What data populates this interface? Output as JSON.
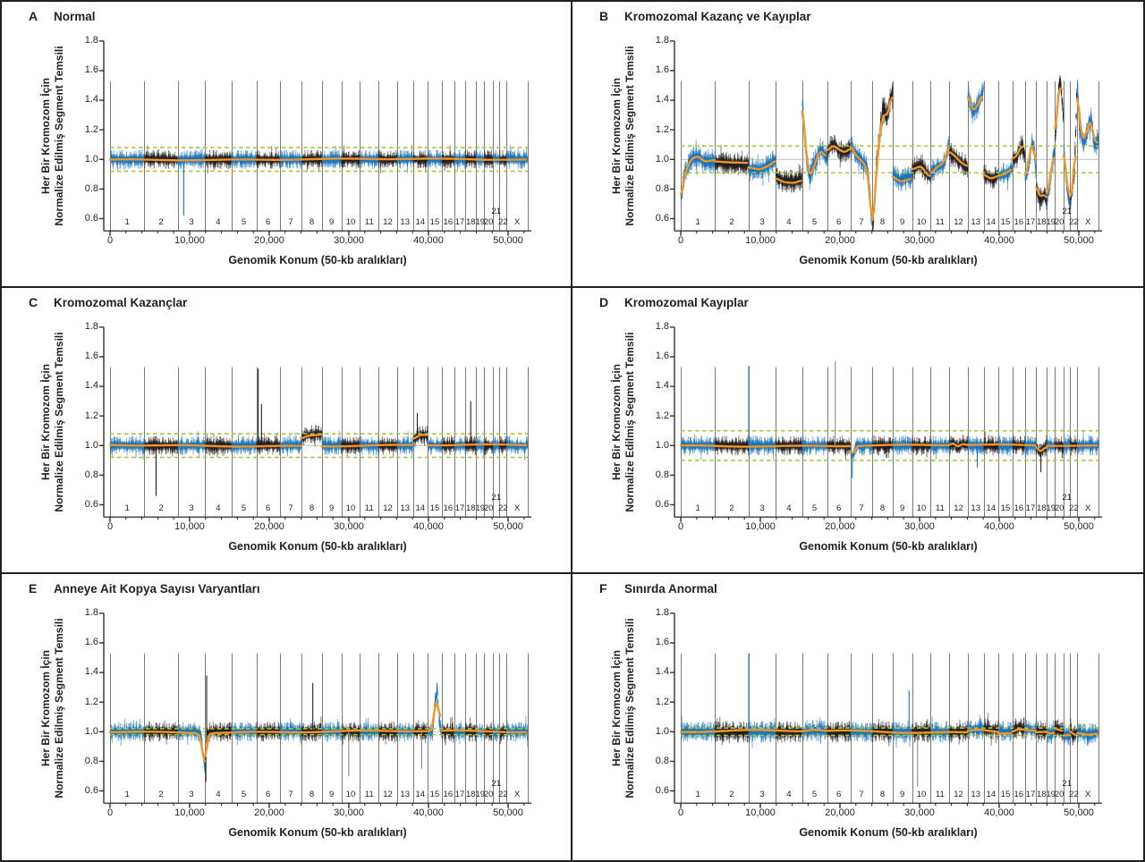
{
  "figure": {
    "background": "#ffffff",
    "border_color": "#231f20"
  },
  "chart_data": {
    "type": "scatter",
    "description": "Six-panel cell-free DNA genome-wide copy-number profiles. Each panel plots noisy per-bin normalized segment representation (alternating blue/black per chromosome) versus genomic position in 50-kb bins, with an orange smoothed segment line, a gray baseline at 1.0 and dashed yellow-green threshold lines.",
    "colors": {
      "odd_chromosome": "#1c75bb",
      "even_chromosome": "#231f20",
      "segment_line": "#f0962b",
      "threshold_dashed": "#a8c540",
      "baseline": "#c6c6c6",
      "separator": "#7a7a7a",
      "spike_gray": "#8a8a8a",
      "axis": "#231f20"
    },
    "axes": {
      "y_label_line1": "Her Bir Kromozom İçin",
      "y_label_line2": "Normalize Edilmiş Segment Temsili",
      "x_label": "Genomik Konum (50-kb aralıkları)",
      "y_ticks": [
        1.8,
        1.6,
        1.4,
        1.2,
        1.0,
        0.8,
        0.6
      ],
      "y_tick_labels": [
        "1.8",
        "1.6",
        "1.4",
        "1.2",
        "1.0",
        "0.8",
        "0.6"
      ],
      "x_ticks": [
        0,
        10000,
        20000,
        30000,
        40000,
        50000
      ],
      "x_tick_labels": [
        "0",
        "10,000",
        "20,000",
        "30,000",
        "40,000",
        "50,000"
      ],
      "x_minor_step": 2000,
      "y_range": [
        0.6,
        1.8
      ],
      "x_range": [
        0,
        52487
      ],
      "baseline": 1.0,
      "separator_top_value": 1.53
    },
    "chromosomes": [
      {
        "name": "1",
        "bins": 4308
      },
      {
        "name": "2",
        "bins": 4204
      },
      {
        "name": "3",
        "bins": 3425
      },
      {
        "name": "4",
        "bins": 3304
      },
      {
        "name": "5",
        "bins": 3131
      },
      {
        "name": "6",
        "bins": 2958
      },
      {
        "name": "7",
        "bins": 2751
      },
      {
        "name": "8",
        "bins": 2526
      },
      {
        "name": "9",
        "bins": 2439
      },
      {
        "name": "10",
        "bins": 2353
      },
      {
        "name": "11",
        "bins": 2335
      },
      {
        "name": "12",
        "bins": 2318
      },
      {
        "name": "13",
        "bins": 1990
      },
      {
        "name": "14",
        "bins": 1851
      },
      {
        "name": "15",
        "bins": 1782
      },
      {
        "name": "16",
        "bins": 1557
      },
      {
        "name": "17",
        "bins": 1401
      },
      {
        "name": "18",
        "bins": 1349
      },
      {
        "name": "19",
        "bins": 1021
      },
      {
        "name": "20",
        "bins": 1090
      },
      {
        "name": "21",
        "bins": 830
      },
      {
        "name": "22",
        "bins": 882
      },
      {
        "name": "X",
        "bins": 2682
      }
    ],
    "panels": [
      {
        "label": "A",
        "title": "Normal",
        "seed": 11,
        "thresholds": [
          1.08,
          0.92
        ],
        "noise_amp": 0.048,
        "line_wobble": 0.004,
        "segments": {},
        "amp_over": {},
        "band_gaps": [],
        "spikes": [
          {
            "chr": "3",
            "frac": 0.22,
            "value": 0.62,
            "color": "blue"
          }
        ]
      },
      {
        "label": "B",
        "title": "Kromozomal Kazanç ve Kayıplar",
        "seed": 22,
        "thresholds": [
          1.09,
          0.91
        ],
        "noise_amp": 0.058,
        "line_wobble": 0.009,
        "segments": {
          "1": [
            [
              0,
              0.72
            ],
            [
              0.12,
              0.9
            ],
            [
              0.3,
              1.0
            ],
            [
              0.5,
              1.02
            ],
            [
              0.7,
              0.98
            ],
            [
              1,
              0.99
            ]
          ],
          "2": [
            [
              0,
              0.98
            ],
            [
              0.5,
              0.97
            ],
            [
              1,
              0.97
            ]
          ],
          "3": [
            [
              0,
              0.94
            ],
            [
              0.4,
              0.93
            ],
            [
              0.75,
              0.96
            ],
            [
              1,
              1.0
            ]
          ],
          "4": [
            [
              0,
              0.88
            ],
            [
              0.3,
              0.855
            ],
            [
              0.7,
              0.85
            ],
            [
              1,
              0.87
            ]
          ],
          "5": [
            [
              0,
              1.42
            ],
            [
              0.18,
              1.0
            ],
            [
              0.3,
              0.88
            ],
            [
              0.5,
              0.97
            ],
            [
              0.72,
              1.07
            ],
            [
              0.88,
              1.04
            ],
            [
              1,
              1.0
            ]
          ],
          "6": [
            [
              0,
              1.06
            ],
            [
              0.25,
              1.1
            ],
            [
              0.5,
              1.07
            ],
            [
              0.75,
              1.05
            ],
            [
              1,
              1.08
            ]
          ],
          "7": [
            [
              0,
              1.1
            ],
            [
              0.25,
              1.03
            ],
            [
              0.5,
              1.0
            ],
            [
              0.75,
              0.95
            ],
            [
              0.9,
              0.75
            ],
            [
              1,
              0.45
            ]
          ],
          "8": [
            [
              0,
              0.5
            ],
            [
              0.2,
              0.95
            ],
            [
              0.4,
              1.22
            ],
            [
              0.55,
              1.35
            ],
            [
              0.7,
              1.28
            ],
            [
              0.85,
              1.38
            ],
            [
              1,
              1.47
            ]
          ],
          "9": [
            [
              0,
              0.9
            ],
            [
              0.4,
              0.86
            ],
            [
              1,
              0.88
            ]
          ],
          "10": [
            [
              0,
              0.94
            ],
            [
              0.5,
              0.96
            ],
            [
              0.8,
              0.9
            ],
            [
              1,
              0.88
            ]
          ],
          "11": [
            [
              0,
              0.9
            ],
            [
              0.35,
              0.95
            ],
            [
              0.7,
              0.97
            ],
            [
              0.9,
              1.05
            ],
            [
              1,
              1.14
            ]
          ],
          "12": [
            [
              0,
              1.05
            ],
            [
              0.3,
              1.02
            ],
            [
              0.6,
              0.98
            ],
            [
              1,
              0.95
            ]
          ],
          "13": [
            [
              0,
              1.44
            ],
            [
              0.3,
              1.32
            ],
            [
              0.6,
              1.36
            ],
            [
              0.85,
              1.42
            ],
            [
              1,
              1.49
            ]
          ],
          "14": [
            [
              0,
              0.9
            ],
            [
              0.5,
              0.87
            ],
            [
              1,
              0.89
            ]
          ],
          "15": [
            [
              0,
              0.89
            ],
            [
              0.5,
              0.9
            ],
            [
              1,
              0.94
            ]
          ],
          "16": [
            [
              0,
              1.0
            ],
            [
              0.4,
              1.02
            ],
            [
              0.75,
              1.1
            ],
            [
              1,
              1.03
            ]
          ],
          "17": [
            [
              0,
              0.86
            ],
            [
              0.3,
              0.96
            ],
            [
              0.65,
              1.12
            ],
            [
              0.85,
              1.05
            ],
            [
              1,
              0.88
            ]
          ],
          "18": [
            [
              0,
              0.82
            ],
            [
              0.35,
              0.72
            ],
            [
              0.7,
              0.76
            ],
            [
              1,
              0.72
            ]
          ],
          "19": [
            [
              0,
              0.72
            ],
            [
              0.5,
              0.9
            ],
            [
              1,
              1.08
            ]
          ],
          "20": [
            [
              0,
              1.1
            ],
            [
              0.45,
              1.5
            ],
            [
              0.65,
              1.54
            ],
            [
              1,
              1.25
            ]
          ],
          "21": [
            [
              0,
              1.1
            ],
            [
              0.5,
              0.8
            ],
            [
              1,
              0.7
            ]
          ],
          "22": [
            [
              0,
              0.7
            ],
            [
              0.6,
              0.9
            ],
            [
              1,
              1.52
            ]
          ],
          "X": [
            [
              0,
              1.5
            ],
            [
              0.12,
              1.22
            ],
            [
              0.3,
              1.1
            ],
            [
              0.5,
              1.22
            ],
            [
              0.65,
              1.28
            ],
            [
              0.8,
              1.1
            ],
            [
              1,
              1.13
            ]
          ]
        },
        "amp_over": {
          "1": 0.065,
          "5": 0.07,
          "8": 0.075,
          "13": 0.065,
          "X": 0.07
        },
        "band_gaps": [],
        "spikes": []
      },
      {
        "label": "C",
        "title": "Kromozomal Kazançlar",
        "seed": 33,
        "thresholds": [
          1.08,
          0.92
        ],
        "noise_amp": 0.048,
        "line_wobble": 0.005,
        "segments": {
          "8": [
            [
              0,
              1.05
            ],
            [
              0.3,
              1.07
            ],
            [
              1,
              1.08
            ]
          ],
          "14": [
            [
              0,
              1.04
            ],
            [
              0.5,
              1.07
            ],
            [
              1,
              1.07
            ]
          ]
        },
        "amp_over": {},
        "band_gaps": [],
        "spikes": [
          {
            "chr": "2",
            "frac": 0.35,
            "value": 0.66,
            "color": "black"
          },
          {
            "chr": "6",
            "frac": 0.08,
            "value": 1.52,
            "color": "black"
          },
          {
            "chr": "6",
            "frac": 0.22,
            "value": 1.28,
            "color": "black"
          },
          {
            "chr": "14",
            "frac": 0.3,
            "value": 1.22,
            "color": "black"
          },
          {
            "chr": "18",
            "frac": 0.5,
            "value": 1.3,
            "color": "black"
          }
        ]
      },
      {
        "label": "D",
        "title": "Kromozomal Kayıplar",
        "seed": 44,
        "thresholds": [
          1.1,
          0.9
        ],
        "noise_amp": 0.05,
        "line_wobble": 0.005,
        "segments": {
          "7": [
            [
              0,
              0.99
            ],
            [
              0.06,
              0.93
            ],
            [
              0.14,
              0.94
            ],
            [
              0.25,
              1.0
            ],
            [
              1,
              1.0
            ]
          ],
          "12": [
            [
              0,
              1.0
            ],
            [
              0.25,
              1.02
            ],
            [
              0.45,
              0.98
            ],
            [
              0.65,
              1.01
            ],
            [
              1,
              1.0
            ]
          ],
          "18": [
            [
              0,
              1.0
            ],
            [
              0.35,
              0.95
            ],
            [
              0.65,
              0.98
            ],
            [
              1,
              0.99
            ]
          ]
        },
        "amp_over": {},
        "band_gaps": [
          {
            "chr": "7",
            "f0": 0.04,
            "f1": 0.14,
            "scale": 0.35
          }
        ],
        "spikes": [
          {
            "chr": "3",
            "frac": 0.01,
            "value": 1.54,
            "color": "blue"
          },
          {
            "chr": "6",
            "frac": 0.35,
            "value": 1.57,
            "color": "gray"
          },
          {
            "chr": "7",
            "frac": 0.08,
            "value": 0.78,
            "color": "blue"
          },
          {
            "chr": "13",
            "frac": 0.6,
            "value": 0.85,
            "color": "blue"
          },
          {
            "chr": "18",
            "frac": 0.45,
            "value": 0.82,
            "color": "black"
          }
        ]
      },
      {
        "label": "E",
        "title": "Anneye Ait Kopya Sayısı Varyantları",
        "seed": 55,
        "thresholds": [
          1.02,
          0.98
        ],
        "noise_amp": 0.05,
        "line_wobble": 0.006,
        "segments": {
          "3": [
            [
              0,
              1.0
            ],
            [
              0.7,
              1.0
            ],
            [
              0.85,
              0.97
            ],
            [
              1,
              0.73
            ]
          ],
          "4": [
            [
              0,
              0.74
            ],
            [
              0.08,
              0.99
            ],
            [
              0.3,
              1.0
            ],
            [
              1,
              1.0
            ]
          ],
          "15": [
            [
              0,
              1.0
            ],
            [
              0.35,
              1.0
            ],
            [
              0.55,
              1.22
            ],
            [
              0.7,
              1.26
            ],
            [
              0.8,
              1.1
            ],
            [
              0.9,
              1.02
            ],
            [
              1,
              1.0
            ]
          ]
        },
        "amp_over": {},
        "band_gaps": [],
        "spikes": [
          {
            "chr": "4",
            "frac": 0.03,
            "value": 0.66,
            "color": "black"
          },
          {
            "chr": "4",
            "frac": 0.06,
            "value": 1.38,
            "color": "black"
          },
          {
            "chr": "8",
            "frac": 0.55,
            "value": 1.33,
            "color": "black"
          },
          {
            "chr": "10",
            "frac": 0.4,
            "value": 0.7,
            "color": "gray"
          },
          {
            "chr": "14",
            "frac": 0.6,
            "value": 0.75,
            "color": "gray"
          },
          {
            "chr": "15",
            "frac": 0.65,
            "value": 1.33,
            "color": "blue"
          }
        ]
      },
      {
        "label": "F",
        "title": "Sınırda Anormal",
        "seed": 66,
        "thresholds": [
          1.025,
          0.975
        ],
        "noise_amp": 0.055,
        "line_wobble": 0.008,
        "segments": {
          "5": [
            [
              0,
              1.0
            ],
            [
              0.5,
              1.01
            ],
            [
              1,
              1.0
            ]
          ],
          "13": [
            [
              0,
              1.01
            ],
            [
              0.5,
              1.02
            ],
            [
              1,
              1.02
            ]
          ],
          "14": [
            [
              0,
              1.02
            ],
            [
              1,
              1.01
            ]
          ],
          "16": [
            [
              0,
              1.01
            ],
            [
              0.5,
              1.03
            ],
            [
              1,
              1.02
            ]
          ],
          "17": [
            [
              0,
              1.02
            ],
            [
              1,
              1.01
            ]
          ],
          "19": [
            [
              0,
              1.0
            ],
            [
              0.5,
              0.98
            ],
            [
              1,
              1.0
            ]
          ],
          "20": [
            [
              0,
              1.02
            ],
            [
              1,
              1.0
            ]
          ],
          "21": [
            [
              0,
              0.97
            ],
            [
              1,
              0.98
            ]
          ],
          "22": [
            [
              0,
              1.01
            ],
            [
              0.5,
              0.97
            ],
            [
              1,
              1.0
            ]
          ],
          "X": [
            [
              0,
              0.99
            ],
            [
              0.5,
              0.98
            ],
            [
              1,
              0.99
            ]
          ]
        },
        "amp_over": {},
        "band_gaps": [],
        "spikes": [
          {
            "chr": "3",
            "frac": 0.01,
            "value": 1.53,
            "color": "blue"
          },
          {
            "chr": "9",
            "frac": 0.85,
            "value": 1.28,
            "color": "blue"
          },
          {
            "chr": "10",
            "frac": 0.3,
            "value": 0.63,
            "color": "gray"
          }
        ]
      }
    ]
  }
}
